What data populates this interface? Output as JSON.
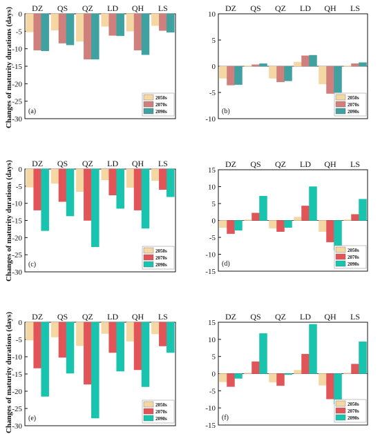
{
  "figure": {
    "ylabel": "Changes of maturity durations (days)"
  },
  "chart_data": [
    {
      "type": "bar",
      "panel": "(a)",
      "categories": [
        "DZ",
        "QS",
        "QZ",
        "LD",
        "QH",
        "LS"
      ],
      "ylim": [
        -30,
        0
      ],
      "yticks": [
        0,
        -5,
        -10,
        -15,
        -20,
        -25,
        -30
      ],
      "series": [
        {
          "name": "2050s",
          "color": "#f5d7a4",
          "values": [
            -5.2,
            -4.7,
            -7.9,
            -3.6,
            -5.0,
            -3.4
          ]
        },
        {
          "name": "2070s",
          "color": "#cf7f7c",
          "values": [
            -10.4,
            -8.4,
            -13.0,
            -6.2,
            -10.4,
            -4.8
          ]
        },
        {
          "name": "2090s",
          "color": "#3fa1a0",
          "values": [
            -10.6,
            -8.9,
            -13.0,
            -6.3,
            -11.7,
            -5.3
          ]
        }
      ],
      "legend_position": "bottom-right"
    },
    {
      "type": "bar",
      "panel": "(b)",
      "categories": [
        "DZ",
        "QS",
        "QZ",
        "LD",
        "QH",
        "LS"
      ],
      "ylim": [
        -10,
        10
      ],
      "yticks": [
        10,
        5,
        0,
        -5,
        -10
      ],
      "series": [
        {
          "name": "2050s",
          "color": "#f5d7a4",
          "values": [
            -2.3,
            0.1,
            -2.3,
            0.8,
            -3.4,
            0.1
          ]
        },
        {
          "name": "2070s",
          "color": "#cf7f7c",
          "values": [
            -3.6,
            0.3,
            -3.0,
            2.0,
            -5.2,
            0.5
          ]
        },
        {
          "name": "2090s",
          "color": "#3fa1a0",
          "values": [
            -3.5,
            0.5,
            -2.8,
            2.1,
            -5.0,
            0.7
          ]
        }
      ],
      "legend_position": "bottom-right"
    },
    {
      "type": "bar",
      "panel": "(c)",
      "categories": [
        "DZ",
        "QS",
        "QZ",
        "LD",
        "QH",
        "LS"
      ],
      "ylim": [
        -30,
        0
      ],
      "yticks": [
        0,
        -5,
        -10,
        -15,
        -20,
        -25,
        -30
      ],
      "series": [
        {
          "name": "2050s",
          "color": "#f5d7a4",
          "values": [
            -5.3,
            -4.2,
            -6.6,
            -3.2,
            -5.4,
            -3.4
          ]
        },
        {
          "name": "2070s",
          "color": "#e15558",
          "values": [
            -12.0,
            -9.5,
            -15.0,
            -7.6,
            -12.0,
            -6.0
          ]
        },
        {
          "name": "2090s",
          "color": "#18c4ad",
          "values": [
            -18.0,
            -13.7,
            -22.7,
            -11.5,
            -17.3,
            -8.1
          ]
        }
      ],
      "legend_position": "bottom-right"
    },
    {
      "type": "bar",
      "panel": "(d)",
      "categories": [
        "DZ",
        "QS",
        "QZ",
        "LD",
        "QH",
        "LS"
      ],
      "ylim": [
        -15,
        15
      ],
      "yticks": [
        15,
        10,
        5,
        0,
        -5,
        -10,
        -15
      ],
      "series": [
        {
          "name": "2050s",
          "color": "#f5d7a4",
          "values": [
            -2.1,
            0.2,
            -2.3,
            1.0,
            -3.3,
            0.2
          ]
        },
        {
          "name": "2070s",
          "color": "#e15558",
          "values": [
            -3.9,
            2.2,
            -3.3,
            4.3,
            -6.4,
            1.8
          ]
        },
        {
          "name": "2090s",
          "color": "#18c4ad",
          "values": [
            -2.9,
            7.2,
            -2.1,
            10.0,
            -8.8,
            6.3
          ]
        }
      ],
      "legend_position": "bottom-right"
    },
    {
      "type": "bar",
      "panel": "(e)",
      "categories": [
        "DZ",
        "QS",
        "QZ",
        "LD",
        "QH",
        "LS"
      ],
      "ylim": [
        -30,
        0
      ],
      "yticks": [
        0,
        -5,
        -10,
        -15,
        -20,
        -25,
        -30
      ],
      "series": [
        {
          "name": "2050s",
          "color": "#f5d7a4",
          "values": [
            -5.2,
            -4.3,
            -6.8,
            -3.3,
            -5.5,
            -3.4
          ]
        },
        {
          "name": "2070s",
          "color": "#e15558",
          "values": [
            -13.3,
            -10.2,
            -18.0,
            -8.8,
            -13.8,
            -6.9
          ]
        },
        {
          "name": "2090s",
          "color": "#18c4ad",
          "values": [
            -21.5,
            -14.8,
            -27.8,
            -14.2,
            -18.7,
            -8.8
          ]
        }
      ],
      "legend_position": "bottom-right"
    },
    {
      "type": "bar",
      "panel": "(f)",
      "categories": [
        "DZ",
        "QS",
        "QZ",
        "LD",
        "QH",
        "LS"
      ],
      "ylim": [
        -15,
        15
      ],
      "yticks": [
        15,
        10,
        5,
        0,
        -5,
        -10,
        -15
      ],
      "series": [
        {
          "name": "2050s",
          "color": "#f5d7a4",
          "values": [
            -2.4,
            0.2,
            -2.5,
            1.0,
            -3.4,
            0.2
          ]
        },
        {
          "name": "2070s",
          "color": "#e15558",
          "values": [
            -3.8,
            3.5,
            -3.5,
            5.7,
            -7.4,
            2.8
          ]
        },
        {
          "name": "2090s",
          "color": "#18c4ad",
          "values": [
            -1.4,
            11.7,
            -0.3,
            14.4,
            -8.9,
            9.3
          ]
        }
      ],
      "legend_position": "bottom-right"
    }
  ]
}
